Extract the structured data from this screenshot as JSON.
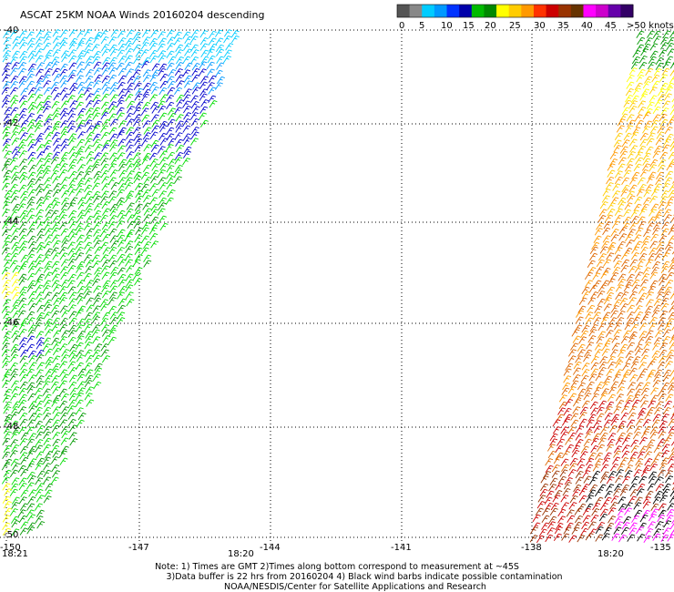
{
  "title": "ASCAT 25KM NOAA Winds 20160204 descending",
  "legend": {
    "colors": [
      "#555555",
      "#888888",
      "#00ccff",
      "#0099ff",
      "#0033ff",
      "#0000aa",
      "#00bb00",
      "#008800",
      "#ffff00",
      "#ffcc00",
      "#ff9900",
      "#ff3300",
      "#cc0000",
      "#993300",
      "#663300",
      "#ff00ff",
      "#cc00cc",
      "#6600aa",
      "#330066"
    ],
    "tick_labels": [
      "0",
      "5",
      "10",
      "15",
      "20",
      "25",
      "30",
      "35",
      "40",
      "45",
      ">50 knots"
    ]
  },
  "lat_labels": [
    "-40",
    "-42",
    "-44",
    "-46",
    "-48",
    "-50"
  ],
  "lon_labels": [
    "-150",
    "-147",
    "-144",
    "-141",
    "-138",
    "-135"
  ],
  "time_labels": [
    "18:21",
    "18:20",
    "18:20"
  ],
  "notes": [
    "Note: 1) Times are GMT 2)Times along bottom correspond to measurement at ~45S",
    "3)Data buffer is 22 hrs from 20160204 4) Black wind barbs indicate possible contamination",
    "NOAA/NESDIS/Center for Satellite Applications and Research"
  ],
  "colors": {
    "time_label": "#880088",
    "wind_barb_palette": [
      "#00ccff",
      "#0099ff",
      "#0000cc",
      "#00dd00",
      "#009900",
      "#ffff00",
      "#ffcc00",
      "#ff9900",
      "#dd6600",
      "#cc0000",
      "#993300",
      "#000000",
      "#ff00ff"
    ]
  }
}
